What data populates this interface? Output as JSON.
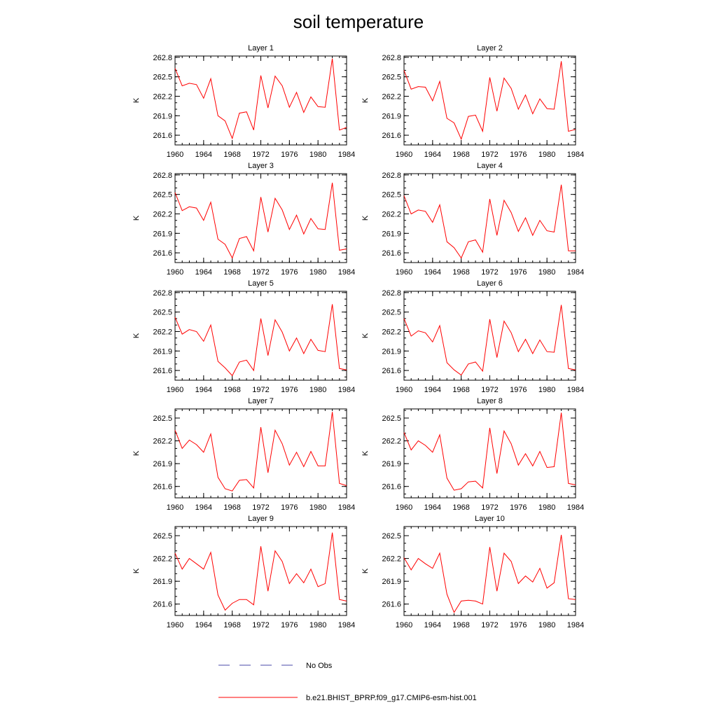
{
  "title": "soil temperature",
  "axis_style": {
    "ylabel": "K",
    "line_color": "#ff0000",
    "obs_color": "#4a4aa8"
  },
  "legend": {
    "obs_label": "No Obs",
    "model_label": "b.e21.BHIST_BPRP.f09_g17.CMIP6-esm-hist.001"
  },
  "chart_data": [
    {
      "type": "line",
      "title": "Layer 1",
      "xlabel": "",
      "ylabel": "K",
      "xlim": [
        1960,
        1984
      ],
      "ylim": [
        261.45,
        262.82
      ],
      "xticks": [
        1960,
        1964,
        1968,
        1972,
        1976,
        1980,
        1984
      ],
      "yticks": [
        261.6,
        261.9,
        262.2,
        262.5,
        262.8
      ],
      "x": [
        1960,
        1961,
        1962,
        1963,
        1964,
        1965,
        1966,
        1967,
        1968,
        1969,
        1970,
        1971,
        1972,
        1973,
        1974,
        1975,
        1976,
        1977,
        1978,
        1979,
        1980,
        1981,
        1982,
        1983,
        1984
      ],
      "series": [
        {
          "name": "b.e21.BHIST_BPRP.f09_g17.CMIP6-esm-hist.001",
          "values": [
            262.63,
            262.36,
            262.4,
            262.38,
            262.17,
            262.47,
            261.9,
            261.82,
            261.55,
            261.94,
            261.96,
            261.68,
            262.52,
            262.02,
            262.51,
            262.36,
            262.03,
            262.26,
            261.95,
            262.19,
            262.04,
            262.03,
            262.78,
            261.68,
            261.72
          ]
        }
      ]
    },
    {
      "type": "line",
      "title": "Layer 2",
      "xlabel": "",
      "ylabel": "K",
      "xlim": [
        1960,
        1984
      ],
      "ylim": [
        261.45,
        262.82
      ],
      "xticks": [
        1960,
        1964,
        1968,
        1972,
        1976,
        1980,
        1984
      ],
      "yticks": [
        261.6,
        261.9,
        262.2,
        262.5,
        262.8
      ],
      "x": [
        1960,
        1961,
        1962,
        1963,
        1964,
        1965,
        1966,
        1967,
        1968,
        1969,
        1970,
        1971,
        1972,
        1973,
        1974,
        1975,
        1976,
        1977,
        1978,
        1979,
        1980,
        1981,
        1982,
        1983,
        1984
      ],
      "series": [
        {
          "name": "b.e21.BHIST_BPRP.f09_g17.CMIP6-esm-hist.001",
          "values": [
            262.6,
            262.31,
            262.35,
            262.34,
            262.13,
            262.43,
            261.86,
            261.79,
            261.54,
            261.89,
            261.91,
            261.66,
            262.49,
            261.97,
            262.48,
            262.32,
            262.0,
            262.22,
            261.93,
            262.16,
            262.01,
            262.0,
            262.74,
            261.66,
            261.69
          ]
        }
      ]
    },
    {
      "type": "line",
      "title": "Layer 3",
      "xlabel": "",
      "ylabel": "K",
      "xlim": [
        1960,
        1984
      ],
      "ylim": [
        261.45,
        262.82
      ],
      "xticks": [
        1960,
        1964,
        1968,
        1972,
        1976,
        1980,
        1984
      ],
      "yticks": [
        261.6,
        261.9,
        262.2,
        262.5,
        262.8
      ],
      "x": [
        1960,
        1961,
        1962,
        1963,
        1964,
        1965,
        1966,
        1967,
        1968,
        1969,
        1970,
        1971,
        1972,
        1973,
        1974,
        1975,
        1976,
        1977,
        1978,
        1979,
        1980,
        1981,
        1982,
        1983,
        1984
      ],
      "series": [
        {
          "name": "b.e21.BHIST_BPRP.f09_g17.CMIP6-esm-hist.001",
          "values": [
            262.53,
            262.25,
            262.31,
            262.29,
            262.1,
            262.38,
            261.81,
            261.73,
            261.52,
            261.82,
            261.85,
            261.63,
            262.46,
            261.92,
            262.44,
            262.26,
            261.96,
            262.18,
            261.89,
            262.13,
            261.97,
            261.96,
            262.68,
            261.64,
            261.66
          ]
        }
      ]
    },
    {
      "type": "line",
      "title": "Layer 4",
      "xlabel": "",
      "ylabel": "K",
      "xlim": [
        1960,
        1984
      ],
      "ylim": [
        261.45,
        262.82
      ],
      "xticks": [
        1960,
        1964,
        1968,
        1972,
        1976,
        1980,
        1984
      ],
      "yticks": [
        261.6,
        261.9,
        262.2,
        262.5,
        262.8
      ],
      "x": [
        1960,
        1961,
        1962,
        1963,
        1964,
        1965,
        1966,
        1967,
        1968,
        1969,
        1970,
        1971,
        1972,
        1973,
        1974,
        1975,
        1976,
        1977,
        1978,
        1979,
        1980,
        1981,
        1982,
        1983,
        1984
      ],
      "series": [
        {
          "name": "b.e21.BHIST_BPRP.f09_g17.CMIP6-esm-hist.001",
          "values": [
            262.48,
            262.2,
            262.26,
            262.24,
            262.07,
            262.34,
            261.77,
            261.68,
            261.52,
            261.77,
            261.8,
            261.61,
            262.43,
            261.87,
            262.41,
            262.22,
            261.93,
            262.14,
            261.87,
            262.1,
            261.94,
            261.92,
            262.65,
            261.63,
            261.63
          ]
        }
      ]
    },
    {
      "type": "line",
      "title": "Layer 5",
      "xlabel": "",
      "ylabel": "K",
      "xlim": [
        1960,
        1984
      ],
      "ylim": [
        261.45,
        262.82
      ],
      "xticks": [
        1960,
        1964,
        1968,
        1972,
        1976,
        1980,
        1984
      ],
      "yticks": [
        261.6,
        261.9,
        262.2,
        262.5,
        262.8
      ],
      "x": [
        1960,
        1961,
        1962,
        1963,
        1964,
        1965,
        1966,
        1967,
        1968,
        1969,
        1970,
        1971,
        1972,
        1973,
        1974,
        1975,
        1976,
        1977,
        1978,
        1979,
        1980,
        1981,
        1982,
        1983,
        1984
      ],
      "series": [
        {
          "name": "b.e21.BHIST_BPRP.f09_g17.CMIP6-esm-hist.001",
          "values": [
            262.42,
            262.16,
            262.23,
            262.2,
            262.05,
            262.3,
            261.74,
            261.64,
            261.52,
            261.73,
            261.76,
            261.6,
            262.4,
            261.83,
            262.38,
            262.19,
            261.9,
            262.1,
            261.86,
            262.08,
            261.91,
            261.89,
            262.62,
            261.63,
            261.61
          ]
        }
      ]
    },
    {
      "type": "line",
      "title": "Layer 6",
      "xlabel": "",
      "ylabel": "K",
      "xlim": [
        1960,
        1984
      ],
      "ylim": [
        261.45,
        262.82
      ],
      "xticks": [
        1960,
        1964,
        1968,
        1972,
        1976,
        1980,
        1984
      ],
      "yticks": [
        261.6,
        261.9,
        262.2,
        262.5,
        262.8
      ],
      "x": [
        1960,
        1961,
        1962,
        1963,
        1964,
        1965,
        1966,
        1967,
        1968,
        1969,
        1970,
        1971,
        1972,
        1973,
        1974,
        1975,
        1976,
        1977,
        1978,
        1979,
        1980,
        1981,
        1982,
        1983,
        1984
      ],
      "series": [
        {
          "name": "b.e21.BHIST_BPRP.f09_g17.CMIP6-esm-hist.001",
          "values": [
            262.4,
            262.13,
            262.21,
            262.18,
            262.04,
            262.29,
            261.72,
            261.61,
            261.53,
            261.7,
            261.73,
            261.59,
            262.39,
            261.8,
            262.36,
            262.18,
            261.89,
            262.08,
            261.86,
            262.07,
            261.89,
            261.88,
            262.61,
            261.63,
            261.61
          ]
        }
      ]
    },
    {
      "type": "line",
      "title": "Layer 7",
      "xlabel": "",
      "ylabel": "K",
      "xlim": [
        1960,
        1984
      ],
      "ylim": [
        261.45,
        262.62
      ],
      "xticks": [
        1960,
        1964,
        1968,
        1972,
        1976,
        1980,
        1984
      ],
      "yticks": [
        261.6,
        261.9,
        262.2,
        262.5
      ],
      "x": [
        1960,
        1961,
        1962,
        1963,
        1964,
        1965,
        1966,
        1967,
        1968,
        1969,
        1970,
        1971,
        1972,
        1973,
        1974,
        1975,
        1976,
        1977,
        1978,
        1979,
        1980,
        1981,
        1982,
        1983,
        1984
      ],
      "series": [
        {
          "name": "b.e21.BHIST_BPRP.f09_g17.CMIP6-esm-hist.001",
          "values": [
            262.34,
            262.1,
            262.21,
            262.15,
            262.05,
            262.29,
            261.72,
            261.57,
            261.54,
            261.68,
            261.69,
            261.58,
            262.38,
            261.78,
            262.34,
            262.16,
            261.88,
            262.05,
            261.86,
            262.06,
            261.87,
            261.87,
            262.58,
            261.64,
            261.61
          ]
        }
      ]
    },
    {
      "type": "line",
      "title": "Layer 8",
      "xlabel": "",
      "ylabel": "K",
      "xlim": [
        1960,
        1984
      ],
      "ylim": [
        261.45,
        262.62
      ],
      "xticks": [
        1960,
        1964,
        1968,
        1972,
        1976,
        1980,
        1984
      ],
      "yticks": [
        261.6,
        261.9,
        262.2,
        262.5
      ],
      "x": [
        1960,
        1961,
        1962,
        1963,
        1964,
        1965,
        1966,
        1967,
        1968,
        1969,
        1970,
        1971,
        1972,
        1973,
        1974,
        1975,
        1976,
        1977,
        1978,
        1979,
        1980,
        1981,
        1982,
        1983,
        1984
      ],
      "series": [
        {
          "name": "b.e21.BHIST_BPRP.f09_g17.CMIP6-esm-hist.001",
          "values": [
            262.31,
            262.08,
            262.2,
            262.14,
            262.05,
            262.28,
            261.71,
            261.55,
            261.57,
            261.66,
            261.67,
            261.58,
            262.37,
            261.77,
            262.33,
            262.16,
            261.88,
            262.03,
            261.87,
            262.06,
            261.85,
            261.86,
            262.57,
            261.64,
            261.62
          ]
        }
      ]
    },
    {
      "type": "line",
      "title": "Layer 9",
      "xlabel": "",
      "ylabel": "K",
      "xlim": [
        1960,
        1984
      ],
      "ylim": [
        261.45,
        262.62
      ],
      "xticks": [
        1960,
        1964,
        1968,
        1972,
        1976,
        1980,
        1984
      ],
      "yticks": [
        261.6,
        261.9,
        262.2,
        262.5
      ],
      "x": [
        1960,
        1961,
        1962,
        1963,
        1964,
        1965,
        1966,
        1967,
        1968,
        1969,
        1970,
        1971,
        1972,
        1973,
        1974,
        1975,
        1976,
        1977,
        1978,
        1979,
        1980,
        1981,
        1982,
        1983,
        1984
      ],
      "series": [
        {
          "name": "b.e21.BHIST_BPRP.f09_g17.CMIP6-esm-hist.001",
          "values": [
            262.27,
            262.06,
            262.2,
            262.13,
            262.06,
            262.28,
            261.72,
            261.52,
            261.61,
            261.66,
            261.66,
            261.59,
            262.36,
            261.77,
            262.3,
            262.16,
            261.87,
            262.0,
            261.88,
            262.06,
            261.83,
            261.87,
            262.54,
            261.66,
            261.64
          ]
        }
      ]
    },
    {
      "type": "line",
      "title": "Layer 10",
      "xlabel": "",
      "ylabel": "K",
      "xlim": [
        1960,
        1984
      ],
      "ylim": [
        261.45,
        262.62
      ],
      "xticks": [
        1960,
        1964,
        1968,
        1972,
        1976,
        1980,
        1984
      ],
      "yticks": [
        261.6,
        261.9,
        262.2,
        262.5
      ],
      "x": [
        1960,
        1961,
        1962,
        1963,
        1964,
        1965,
        1966,
        1967,
        1968,
        1969,
        1970,
        1971,
        1972,
        1973,
        1974,
        1975,
        1976,
        1977,
        1978,
        1979,
        1980,
        1981,
        1982,
        1983,
        1984
      ],
      "series": [
        {
          "name": "b.e21.BHIST_BPRP.f09_g17.CMIP6-esm-hist.001",
          "values": [
            262.21,
            262.05,
            262.2,
            262.13,
            262.07,
            262.27,
            261.73,
            261.49,
            261.64,
            261.65,
            261.64,
            261.6,
            262.35,
            261.77,
            262.27,
            262.16,
            261.87,
            261.97,
            261.89,
            262.07,
            261.81,
            261.88,
            262.51,
            261.67,
            261.66
          ]
        }
      ]
    }
  ]
}
